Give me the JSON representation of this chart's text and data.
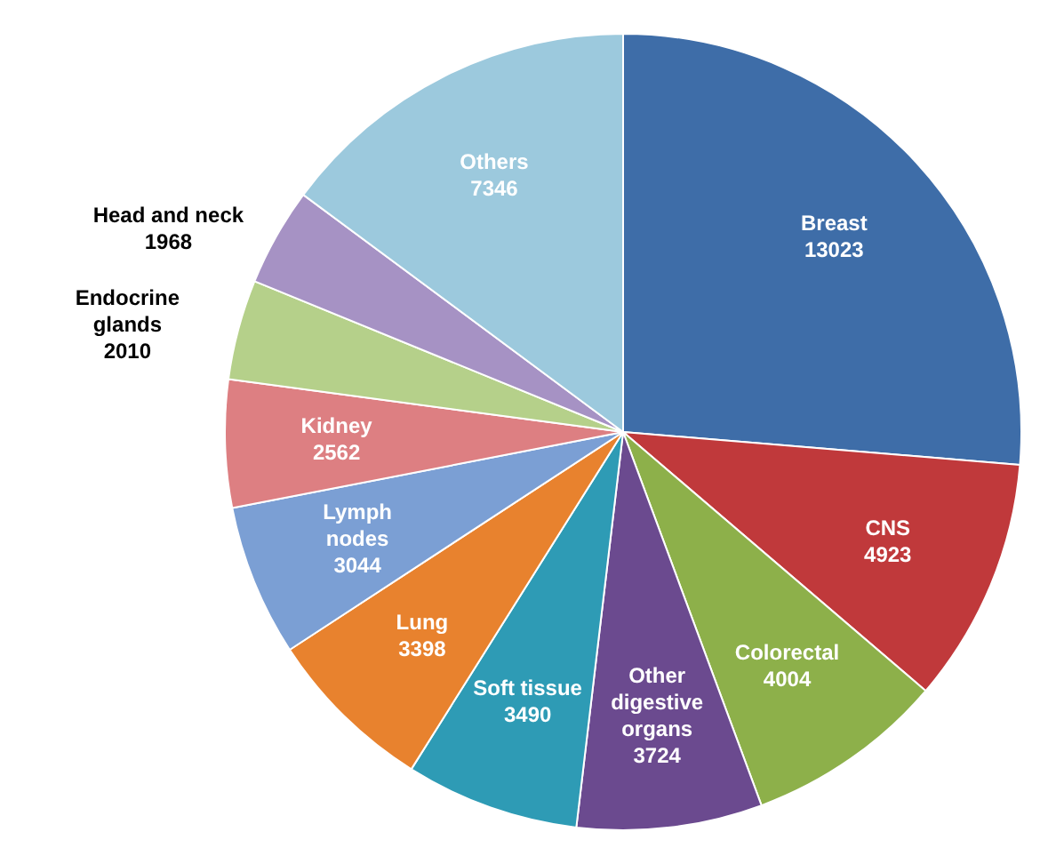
{
  "chart_data": {
    "type": "pie",
    "categories": [
      "Breast",
      "CNS",
      "Colorectal",
      "Other digestive organs",
      "Soft tissue",
      "Lung",
      "Lymph nodes",
      "Kidney",
      "Endocrine glands",
      "Head and neck",
      "Others"
    ],
    "values": [
      13023,
      4923,
      4004,
      3724,
      3490,
      3398,
      3044,
      2562,
      2010,
      1968,
      7346
    ],
    "colors": [
      "#3e6da8",
      "#c0393b",
      "#8db04a",
      "#6b4a8f",
      "#2e9bb5",
      "#e8822e",
      "#7b9fd4",
      "#dd7f82",
      "#b5d08a",
      "#a692c4",
      "#9cc9dd"
    ],
    "data_labels": true,
    "legend": false
  }
}
